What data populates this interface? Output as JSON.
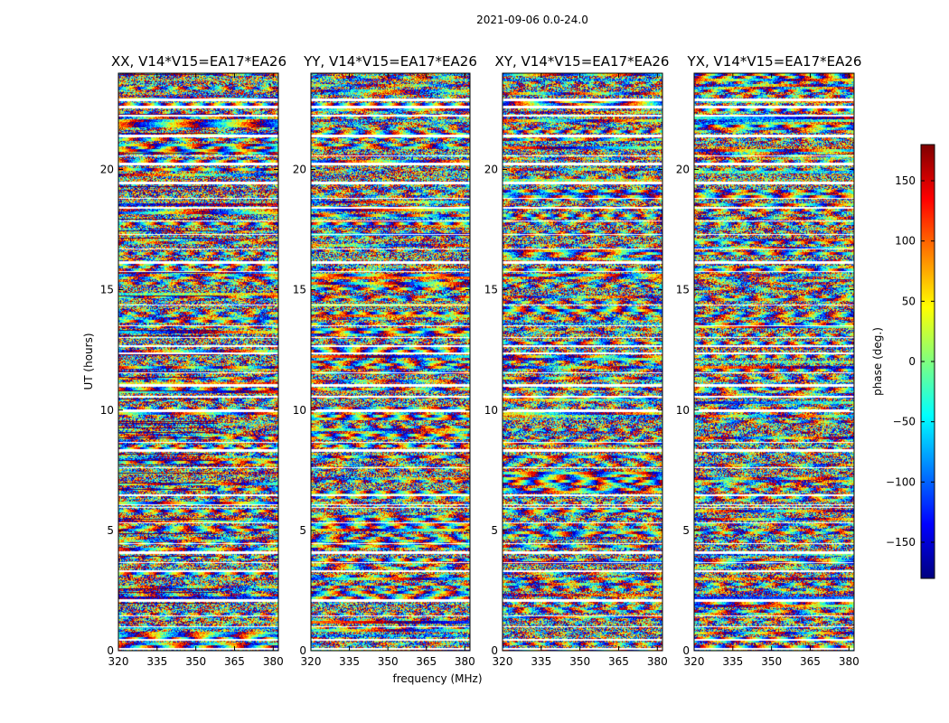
{
  "figure": {
    "suptitle": "2021-09-06 0.0-24.0"
  },
  "chart_data": {
    "type": "heatmap",
    "title": "2021-09-06 0.0-24.0",
    "xlabel": "frequency (MHz)",
    "ylabel": "UT (hours)",
    "xlim": [
      320,
      382
    ],
    "ylim": [
      0,
      24
    ],
    "xticks": [
      "320",
      "335",
      "350",
      "365",
      "380"
    ],
    "xtick_values": [
      320,
      335,
      350,
      365,
      380
    ],
    "yticks": [
      "0",
      "5",
      "10",
      "15",
      "20"
    ],
    "ytick_values": [
      0,
      5,
      10,
      15,
      20
    ],
    "colorbar": {
      "label": "phase (deg.)",
      "range": [
        -180,
        180
      ],
      "ticks": [
        "−150",
        "−100",
        "−50",
        "0",
        "50",
        "100",
        "150"
      ],
      "tick_values": [
        -150,
        -100,
        -50,
        0,
        50,
        100,
        150
      ],
      "colormap": [
        "#00007f",
        "#0000ff",
        "#007fff",
        "#00ffff",
        "#7fff7f",
        "#ffff00",
        "#ff7f00",
        "#ff0000",
        "#7f0000"
      ]
    },
    "panels": [
      {
        "title": "XX, V14*V15=EA17*EA26",
        "seed": 11
      },
      {
        "title": "YY, V14*V15=EA17*EA26",
        "seed": 23
      },
      {
        "title": "XY, V14*V15=EA17*EA26",
        "seed": 37
      },
      {
        "title": "YX, V14*V15=EA17*EA26",
        "seed": 53
      }
    ],
    "flagged_ut_hours": [
      [
        0.05,
        0.12
      ],
      [
        0.45,
        0.5
      ],
      [
        1.0,
        1.05
      ],
      [
        1.45,
        1.5
      ],
      [
        2.05,
        2.15
      ],
      [
        3.3,
        3.35
      ],
      [
        3.65,
        3.7
      ],
      [
        4.05,
        4.15
      ],
      [
        4.45,
        4.5
      ],
      [
        5.3,
        5.35
      ],
      [
        5.95,
        6.0
      ],
      [
        6.05,
        6.1
      ],
      [
        6.45,
        6.5
      ],
      [
        7.6,
        7.65
      ],
      [
        8.3,
        8.4
      ],
      [
        8.65,
        8.7
      ],
      [
        9.95,
        10.05
      ],
      [
        10.55,
        10.6
      ],
      [
        11.0,
        11.1
      ],
      [
        11.55,
        11.6
      ],
      [
        12.35,
        12.4
      ],
      [
        12.65,
        12.7
      ],
      [
        13.0,
        13.05
      ],
      [
        13.5,
        13.55
      ],
      [
        14.35,
        14.4
      ],
      [
        15.75,
        15.8
      ],
      [
        16.1,
        16.2
      ],
      [
        16.7,
        16.75
      ],
      [
        17.3,
        17.35
      ],
      [
        17.85,
        17.9
      ],
      [
        18.4,
        18.45
      ],
      [
        18.8,
        18.85
      ],
      [
        19.4,
        19.5
      ],
      [
        20.2,
        20.3
      ],
      [
        20.55,
        20.6
      ],
      [
        21.35,
        21.45
      ],
      [
        22.2,
        22.3
      ],
      [
        22.55,
        22.65
      ],
      [
        22.85,
        22.95
      ]
    ]
  }
}
